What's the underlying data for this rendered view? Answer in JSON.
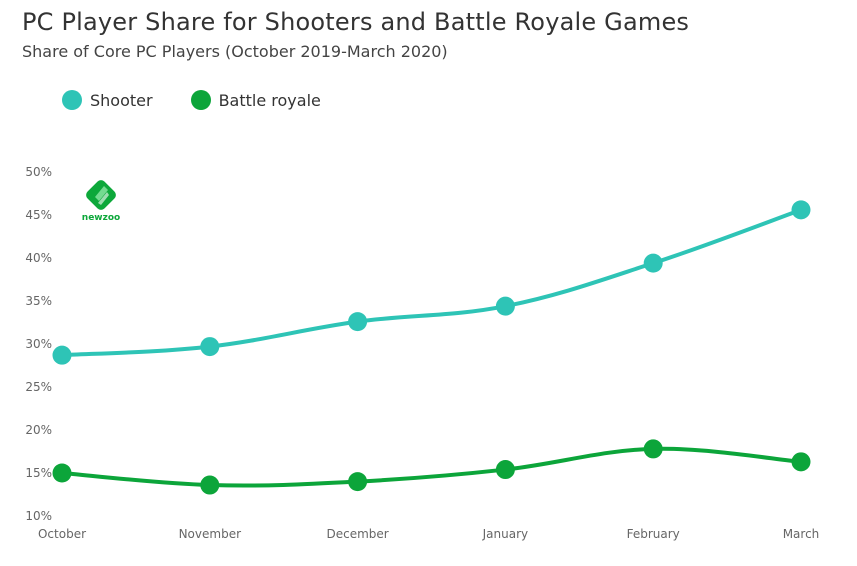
{
  "header": {
    "title": "PC Player Share for Shooters and Battle Royale Games",
    "subtitle": "Share of Core PC Players (October 2019-March 2020)"
  },
  "logo": {
    "text": "newzoo",
    "color": "#0da83a"
  },
  "chart_data": {
    "type": "line",
    "title": "PC Player Share for Shooters and Battle Royale Games",
    "subtitle": "Share of Core PC Players (October 2019-March 2020)",
    "xlabel": "",
    "ylabel": "",
    "categories": [
      "October",
      "November",
      "December",
      "January",
      "February",
      "March"
    ],
    "yticks": [
      "10%",
      "15%",
      "20%",
      "25%",
      "30%",
      "35%",
      "40%",
      "45%",
      "50%"
    ],
    "ylim": [
      10,
      50
    ],
    "grid": false,
    "legend_position": "top-left",
    "series": [
      {
        "name": "Shooter",
        "color": "#2ec4b6",
        "values": [
          28.7,
          29.7,
          32.6,
          34.4,
          39.4,
          45.6
        ]
      },
      {
        "name": "Battle royale",
        "color": "#0ca53a",
        "values": [
          15.0,
          13.6,
          14.0,
          15.4,
          17.8,
          16.3
        ]
      }
    ]
  }
}
